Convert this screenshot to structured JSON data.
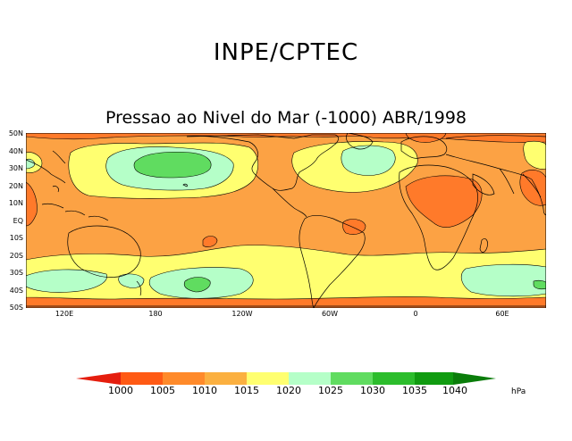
{
  "header": {
    "org": "INPE/CPTEC",
    "title": "Pressao ao Nivel do Mar (-1000) ABR/1998"
  },
  "map": {
    "lat_labels": [
      "50N",
      "40N",
      "30N",
      "20N",
      "10N",
      "EQ",
      "10S",
      "20S",
      "30S",
      "40S",
      "50S"
    ],
    "lon_labels": [
      "120E",
      "180",
      "120W",
      "60W",
      "0",
      "60E"
    ],
    "background_color": "#fca244"
  },
  "legend": {
    "unit": "hPa",
    "levels": [
      "1000",
      "1005",
      "1010",
      "1015",
      "1020",
      "1025",
      "1030",
      "1035",
      "1040"
    ],
    "colors": [
      "#e51e0e",
      "#ff5a14",
      "#ff8a2a",
      "#fbb040",
      "#ffff70",
      "#b5ffc8",
      "#60dc60",
      "#2cbd2c",
      "#109b10",
      "#0a7d0a"
    ]
  }
}
